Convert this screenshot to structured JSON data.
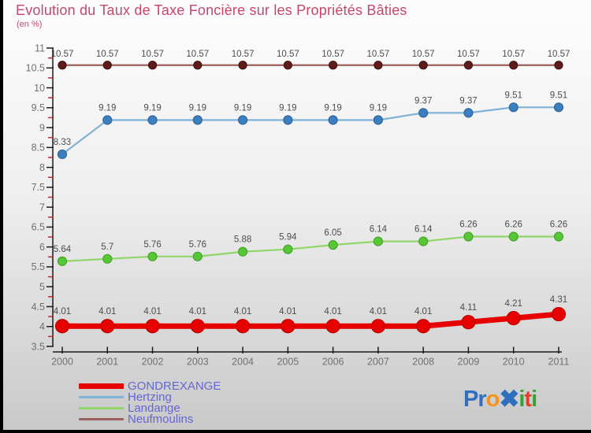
{
  "title": "Evolution du Taux de Taxe Foncière sur les Propriétés Bâties",
  "subtitle": "(en %)",
  "colors": {
    "title_text": "#c6466b",
    "legend_text": "#6565d6",
    "axis_text": "#707070",
    "point_label_text": "#4d4d4d",
    "axis_line": "#1a1a1a",
    "minor_tick": "#cc2222",
    "background_top": "#fdfdfd",
    "background_bottom": "#c9c9c9"
  },
  "chart_data": {
    "type": "line",
    "x": [
      2000,
      2001,
      2002,
      2003,
      2004,
      2005,
      2006,
      2007,
      2008,
      2009,
      2010,
      2011
    ],
    "series": [
      {
        "name": "GONDREXANGE",
        "values": [
          4.01,
          4.01,
          4.01,
          4.01,
          4.01,
          4.01,
          4.01,
          4.01,
          4.01,
          4.11,
          4.21,
          4.31
        ],
        "line_color": "#e60000",
        "dot_color": "#e60000",
        "dot_stroke": "#bf0000",
        "line_width": 7,
        "dot_radius": 8.5,
        "label_offset": 15
      },
      {
        "name": "Hertzing",
        "values": [
          8.33,
          9.19,
          9.19,
          9.19,
          9.19,
          9.19,
          9.19,
          9.19,
          9.37,
          9.37,
          9.51,
          9.51
        ],
        "line_color": "#7fb2d9",
        "dot_color": "#3c7fc0",
        "dot_stroke": "#306699",
        "line_width": 2.2,
        "dot_radius": 5.5,
        "label_offset": 12
      },
      {
        "name": "Landange",
        "values": [
          5.64,
          5.7,
          5.76,
          5.76,
          5.88,
          5.94,
          6.05,
          6.14,
          6.14,
          6.26,
          6.26,
          6.26
        ],
        "line_color": "#92d56a",
        "dot_color": "#58c737",
        "dot_stroke": "#43a528",
        "line_width": 2.2,
        "dot_radius": 5.5,
        "label_offset": 12
      },
      {
        "name": "Neufmoulins",
        "values": [
          10.57,
          10.57,
          10.57,
          10.57,
          10.57,
          10.57,
          10.57,
          10.57,
          10.57,
          10.57,
          10.57,
          10.57
        ],
        "line_color": "#9c5f5f",
        "dot_color": "#5e1c1c",
        "dot_stroke": "#451212",
        "line_width": 2.2,
        "dot_radius": 5,
        "label_offset": 11
      }
    ],
    "ylim": [
      3.5,
      11
    ],
    "ytick_step": 0.5,
    "grid": false,
    "legend_position": "bottom-left"
  },
  "legend": {
    "items": [
      {
        "label": "GONDREXANGE",
        "color": "#e60000",
        "thickness": 7
      },
      {
        "label": "Hertzing",
        "color": "#7fb2d9",
        "thickness": 3
      },
      {
        "label": "Landange",
        "color": "#92d56a",
        "thickness": 3
      },
      {
        "label": "Neufmoulins",
        "color": "#9c5f5f",
        "thickness": 3
      }
    ]
  },
  "logo": {
    "text": "Proxiti",
    "letters": [
      {
        "char": "P",
        "color": "#2e6fc0"
      },
      {
        "char": "r",
        "color": "#2e6fc0"
      },
      {
        "char": "o",
        "color": "#f6931e"
      },
      {
        "char": "✖",
        "color": "#2e6fc0"
      },
      {
        "char": "i",
        "color": "#35a33a"
      },
      {
        "char": "t",
        "color": "#e2402c"
      },
      {
        "char": "i",
        "color": "#35a33a"
      }
    ]
  }
}
